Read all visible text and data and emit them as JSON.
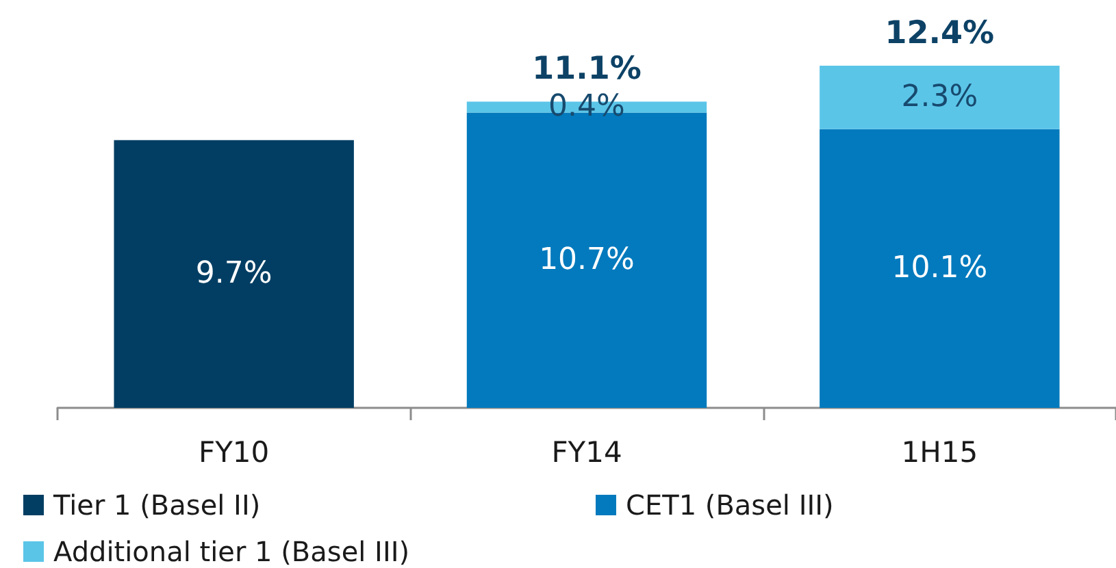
{
  "chart_data": {
    "type": "bar",
    "stacked": true,
    "categories": [
      "FY10",
      "FY14",
      "1H15"
    ],
    "series": [
      {
        "name": "Tier 1 (Basel II)",
        "color": "#023e63",
        "values": [
          9.7,
          null,
          null
        ],
        "value_labels": [
          "9.7%",
          null,
          null
        ]
      },
      {
        "name": "CET1 (Basel III)",
        "color": "#037abd",
        "values": [
          null,
          10.7,
          10.1
        ],
        "value_labels": [
          null,
          "10.7%",
          "10.1%"
        ]
      },
      {
        "name": "Additional tier 1 (Basel III)",
        "color": "#5bc5e8",
        "values": [
          null,
          0.4,
          2.3
        ],
        "value_labels": [
          null,
          "0.4%",
          "2.3%"
        ]
      }
    ],
    "totals": [
      null,
      "11.1%",
      "12.4%"
    ],
    "legend": "bottom"
  }
}
